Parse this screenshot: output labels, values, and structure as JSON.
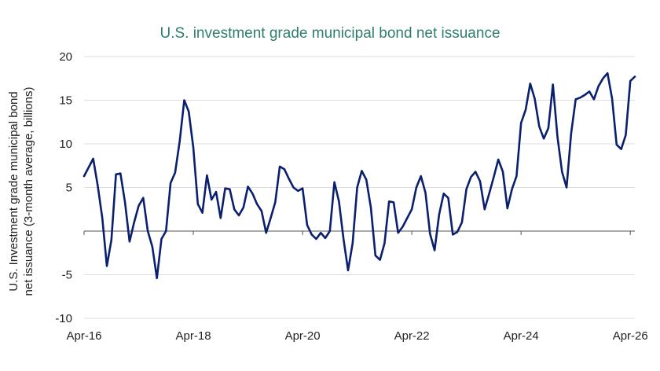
{
  "chart_data": {
    "type": "line",
    "title": "U.S. investment grade municipal bond net issuance",
    "xlabel": "",
    "ylabel_lines": [
      "U.S. Investment grade municipal bond",
      "net issuance (3-month average, billions)"
    ],
    "ylim": [
      -10,
      20
    ],
    "yticks": [
      20,
      15,
      10,
      5,
      -5,
      -10
    ],
    "grid": true,
    "legend": "none",
    "x_labels": [
      "Apr-16",
      "Apr-18",
      "Apr-20",
      "Apr-22",
      "Apr-24",
      "Apr-26"
    ],
    "x_range_months": [
      "Apr-16",
      "Apr-26"
    ],
    "colors": {
      "line": "#0a1f6e",
      "grid": "#dddddd",
      "zero_axis": "#555555",
      "title": "#2f7d6d"
    },
    "series": [
      {
        "points": [
          [
            0,
            6.3
          ],
          [
            2,
            8.3
          ],
          [
            3,
            5.2
          ],
          [
            4,
            1.5
          ],
          [
            5,
            -4.0
          ],
          [
            6,
            -1.0
          ],
          [
            7,
            6.5
          ],
          [
            8,
            6.6
          ],
          [
            9,
            3.3
          ],
          [
            10,
            -1.2
          ],
          [
            11,
            1.0
          ],
          [
            12,
            2.9
          ],
          [
            13,
            3.8
          ],
          [
            14,
            0.0
          ],
          [
            15,
            -1.8
          ],
          [
            16,
            -5.4
          ],
          [
            17,
            -0.9
          ],
          [
            18,
            0.0
          ],
          [
            19,
            5.5
          ],
          [
            20,
            6.7
          ],
          [
            21,
            10.3
          ],
          [
            22,
            15.0
          ],
          [
            23,
            13.7
          ],
          [
            24,
            9.6
          ],
          [
            25,
            3.1
          ],
          [
            26,
            2.1
          ],
          [
            27,
            6.4
          ],
          [
            28,
            3.6
          ],
          [
            29,
            4.5
          ],
          [
            30,
            1.5
          ],
          [
            31,
            4.9
          ],
          [
            32,
            4.8
          ],
          [
            33,
            2.5
          ],
          [
            34,
            1.8
          ],
          [
            35,
            2.7
          ],
          [
            36,
            5.1
          ],
          [
            37,
            4.3
          ],
          [
            38,
            3.1
          ],
          [
            39,
            2.3
          ],
          [
            40,
            -0.2
          ],
          [
            41,
            1.5
          ],
          [
            42,
            3.3
          ],
          [
            43,
            7.4
          ],
          [
            44,
            7.1
          ],
          [
            45,
            6.0
          ],
          [
            46,
            5.0
          ],
          [
            47,
            4.6
          ],
          [
            48,
            4.9
          ],
          [
            49,
            0.7
          ],
          [
            50,
            -0.4
          ],
          [
            51,
            -0.9
          ],
          [
            52,
            -0.2
          ],
          [
            53,
            -0.8
          ],
          [
            54,
            0.0
          ],
          [
            55,
            5.6
          ],
          [
            56,
            3.4
          ],
          [
            57,
            -0.9
          ],
          [
            58,
            -4.5
          ],
          [
            59,
            -1.4
          ],
          [
            60,
            5.0
          ],
          [
            61,
            6.9
          ],
          [
            62,
            5.9
          ],
          [
            63,
            2.7
          ],
          [
            64,
            -2.8
          ],
          [
            65,
            -3.3
          ],
          [
            66,
            -1.4
          ],
          [
            67,
            3.4
          ],
          [
            68,
            3.3
          ],
          [
            69,
            -0.2
          ],
          [
            70,
            0.5
          ],
          [
            71,
            1.5
          ],
          [
            72,
            2.5
          ],
          [
            73,
            5.0
          ],
          [
            74,
            6.3
          ],
          [
            75,
            4.4
          ],
          [
            76,
            -0.3
          ],
          [
            77,
            -2.2
          ],
          [
            78,
            1.9
          ],
          [
            79,
            4.3
          ],
          [
            80,
            3.8
          ],
          [
            81,
            -0.4
          ],
          [
            82,
            -0.1
          ],
          [
            83,
            1.0
          ],
          [
            84,
            4.8
          ],
          [
            85,
            6.2
          ],
          [
            86,
            6.8
          ],
          [
            87,
            5.7
          ],
          [
            88,
            2.5
          ],
          [
            89,
            4.3
          ],
          [
            90,
            6.2
          ],
          [
            91,
            8.2
          ],
          [
            92,
            6.8
          ],
          [
            93,
            2.6
          ],
          [
            94,
            4.8
          ],
          [
            95,
            6.3
          ],
          [
            96,
            12.4
          ],
          [
            97,
            13.9
          ],
          [
            98,
            16.9
          ],
          [
            99,
            15.2
          ],
          [
            100,
            12.0
          ],
          [
            101,
            10.6
          ],
          [
            102,
            11.8
          ],
          [
            103,
            16.8
          ],
          [
            104,
            10.8
          ],
          [
            105,
            6.8
          ],
          [
            106,
            5.0
          ],
          [
            107,
            11.2
          ],
          [
            108,
            15.1
          ],
          [
            109,
            15.3
          ],
          [
            110,
            15.6
          ],
          [
            111,
            16.0
          ],
          [
            112,
            15.1
          ],
          [
            113,
            16.6
          ],
          [
            114,
            17.5
          ],
          [
            115,
            18.1
          ],
          [
            116,
            15.2
          ],
          [
            117,
            9.9
          ],
          [
            118,
            9.4
          ],
          [
            119,
            11.0
          ],
          [
            120,
            17.2
          ],
          [
            121,
            17.7
          ]
        ]
      }
    ]
  }
}
